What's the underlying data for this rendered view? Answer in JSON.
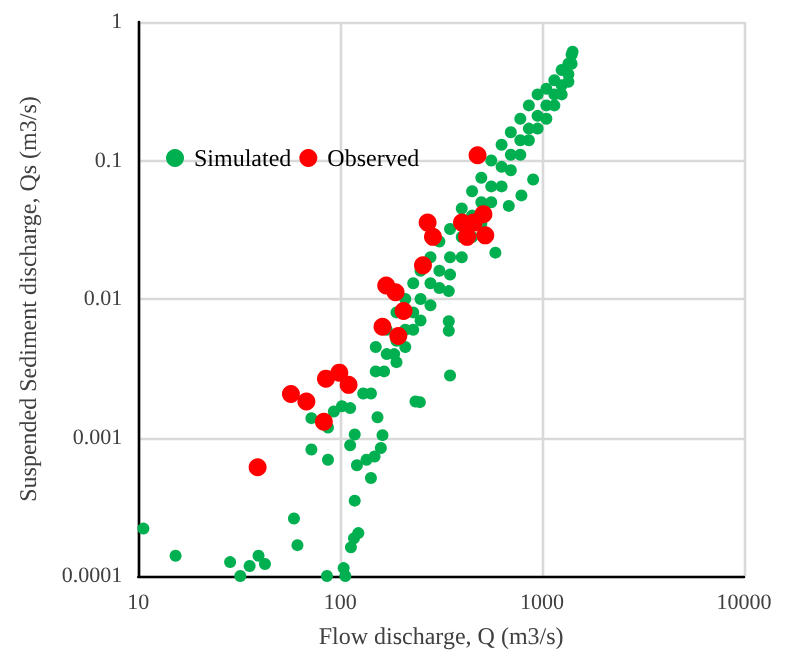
{
  "chart_data": {
    "type": "scatter",
    "xlabel": "Flow discharge, Q (m3/s)",
    "ylabel": "Suspended Sediment discharge, Qs (m3/s)",
    "log": "xy",
    "xlim": [
      10,
      10000
    ],
    "xticks": [
      10,
      100,
      1000,
      10000
    ],
    "ylim": [
      0.0001,
      1
    ],
    "yticks": [
      0.0001,
      0.001,
      0.01,
      0.1,
      1
    ],
    "grid": true,
    "legend": "top left",
    "marker": "circle",
    "series": [
      {
        "name": "Simulated",
        "color": "#00b050",
        "x": [
          10.6,
          15.3,
          28.5,
          32,
          35.6,
          39.4,
          42.4,
          59,
          61.4,
          86,
          104,
          106,
          113,
          117,
          123,
          118,
          72,
          87,
          72,
          87,
          93,
          102,
          112,
          118,
          112,
          121,
          130,
          142,
          135,
          148,
          159,
          162,
          142,
          153,
          350,
          236,
          248,
          345,
          345,
          165,
          185,
          587,
          684,
          790,
          903,
          345,
          150,
          150,
          170,
          170,
          190,
          190,
          190,
          210,
          210,
          210,
          230,
          230,
          230,
          250,
          250,
          250,
          280,
          280,
          280,
          310,
          310,
          310,
          350,
          350,
          350,
          400,
          400,
          400,
          450,
          450,
          450,
          500,
          500,
          500,
          560,
          560,
          560,
          630,
          630,
          630,
          700,
          700,
          700,
          780,
          780,
          780,
          860,
          860,
          860,
          950,
          950,
          950,
          1050,
          1050,
          1050,
          1150,
          1150,
          1150,
          1250,
          1250,
          1250,
          1350,
          1350,
          1350,
          1400,
          1400,
          1416
        ],
        "values": [
          0.00022,
          0.00014,
          0.000126,
          0.0001,
          0.000118,
          0.00014,
          0.000122,
          0.00026,
          0.000167,
          0.0001,
          0.000114,
          0.0001,
          0.000161,
          0.000187,
          0.000204,
          0.00035,
          0.00082,
          0.00069,
          0.00138,
          0.00118,
          0.00154,
          0.00168,
          0.00163,
          0.00105,
          0.00088,
          0.00063,
          0.00208,
          0.00208,
          0.00069,
          0.00073,
          0.00084,
          0.00104,
          0.00051,
          0.0014,
          0.0028,
          0.00182,
          0.0018,
          0.0059,
          0.0069,
          0.003,
          0.004,
          0.0216,
          0.047,
          0.056,
          0.073,
          0.0114,
          0.003,
          0.0045,
          0.004,
          0.006,
          0.005,
          0.008,
          0.0035,
          0.006,
          0.01,
          0.0045,
          0.008,
          0.013,
          0.006,
          0.01,
          0.016,
          0.007,
          0.013,
          0.02,
          0.009,
          0.016,
          0.026,
          0.012,
          0.02,
          0.032,
          0.015,
          0.028,
          0.045,
          0.02,
          0.04,
          0.06,
          0.028,
          0.05,
          0.075,
          0.035,
          0.065,
          0.1,
          0.05,
          0.09,
          0.13,
          0.065,
          0.11,
          0.16,
          0.085,
          0.14,
          0.2,
          0.11,
          0.17,
          0.25,
          0.14,
          0.21,
          0.3,
          0.17,
          0.25,
          0.33,
          0.2,
          0.3,
          0.38,
          0.25,
          0.35,
          0.45,
          0.3,
          0.42,
          0.5,
          0.37,
          0.5,
          0.58,
          0.61
        ]
      },
      {
        "name": "Observed",
        "color": "#ff0000",
        "x": [
          479,
          271,
          288,
          401,
          458,
          512,
          425,
          523,
          257,
          169,
          188,
          206,
          162,
          194,
          85,
          99,
          110,
          57,
          68,
          83,
          39
        ],
        "values": [
          0.109,
          0.0356,
          0.0281,
          0.0356,
          0.0356,
          0.041,
          0.0281,
          0.0288,
          0.0175,
          0.0125,
          0.0112,
          0.0082,
          0.0063,
          0.0054,
          0.00266,
          0.00294,
          0.0024,
          0.00206,
          0.00182,
          0.0013,
          0.00061
        ]
      }
    ]
  }
}
